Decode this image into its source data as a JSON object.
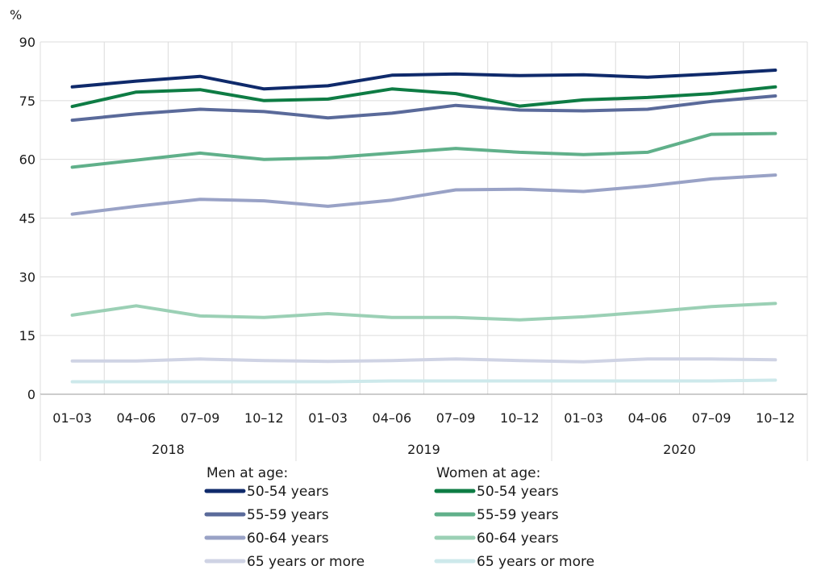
{
  "chart_data": {
    "type": "line",
    "unit_label": "%",
    "ylim": [
      0,
      90
    ],
    "y_ticks": [
      0,
      15,
      30,
      45,
      60,
      75,
      90
    ],
    "grid": true,
    "categories": [
      "01–03",
      "04–06",
      "07–09",
      "10–12",
      "01–03",
      "04–06",
      "07–09",
      "10–12",
      "01–03",
      "04–06",
      "07–09",
      "10–12"
    ],
    "years": [
      "2018",
      "2019",
      "2020"
    ],
    "legend": {
      "placement": "bottom",
      "men_title": "Men at age:",
      "women_title": "Women at age:"
    },
    "series": [
      {
        "name": "50-54 years",
        "group": "men",
        "color": "#0f2a6b",
        "values": [
          78.5,
          80.0,
          81.2,
          78.0,
          78.8,
          81.5,
          81.8,
          81.4,
          81.6,
          81.0,
          81.8,
          82.8
        ]
      },
      {
        "name": "55-59 years",
        "group": "men",
        "color": "#5a6a9a",
        "values": [
          70.0,
          71.6,
          72.8,
          72.2,
          70.6,
          71.8,
          73.8,
          72.6,
          72.4,
          72.8,
          74.8,
          76.2
        ]
      },
      {
        "name": "60-64 years",
        "group": "men",
        "color": "#99a2c6",
        "values": [
          46.0,
          48.0,
          49.8,
          49.4,
          48.0,
          49.6,
          52.2,
          52.4,
          51.8,
          53.2,
          55.0,
          56.0
        ]
      },
      {
        "name": "65 years or more",
        "group": "men",
        "color": "#cfd3e4",
        "values": [
          8.5,
          8.5,
          9.0,
          8.6,
          8.4,
          8.6,
          9.0,
          8.6,
          8.3,
          9.0,
          9.0,
          8.8
        ]
      },
      {
        "name": "50-54 years",
        "group": "women",
        "color": "#0e7c44",
        "values": [
          73.5,
          77.2,
          77.8,
          75.0,
          75.4,
          78.0,
          76.8,
          73.6,
          75.2,
          75.8,
          76.8,
          78.5
        ]
      },
      {
        "name": "55-59 years",
        "group": "women",
        "color": "#60b08a",
        "values": [
          58.0,
          59.8,
          61.6,
          60.0,
          60.4,
          61.6,
          62.8,
          61.8,
          61.2,
          61.8,
          66.4,
          66.6
        ]
      },
      {
        "name": "60-64 years",
        "group": "women",
        "color": "#9bd0b5",
        "values": [
          20.2,
          22.6,
          20.0,
          19.6,
          20.6,
          19.6,
          19.6,
          19.0,
          19.8,
          21.0,
          22.4,
          23.2
        ]
      },
      {
        "name": "65 years or more",
        "group": "women",
        "color": "#cde9eb",
        "values": [
          3.2,
          3.2,
          3.2,
          3.2,
          3.2,
          3.4,
          3.4,
          3.4,
          3.4,
          3.4,
          3.4,
          3.6
        ]
      }
    ]
  }
}
